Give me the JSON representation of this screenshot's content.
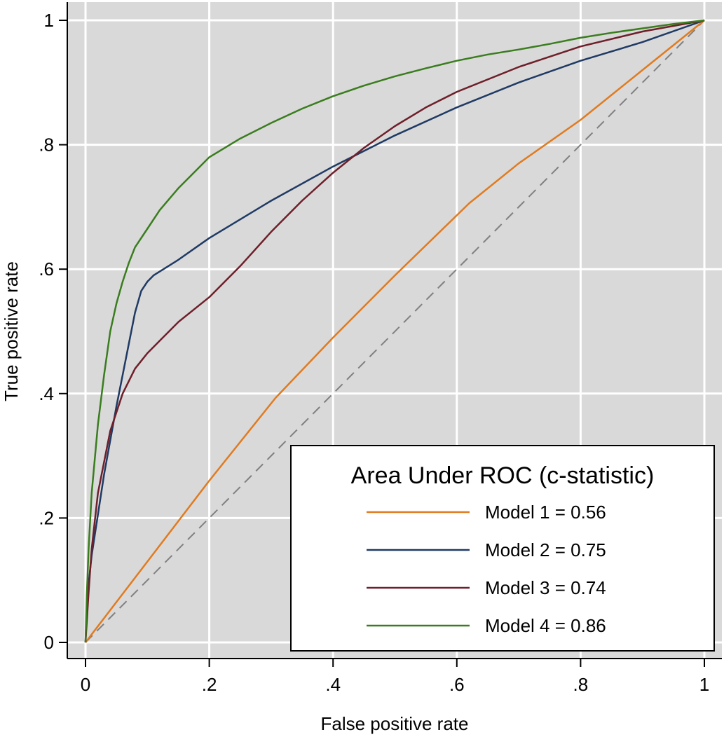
{
  "chart_data": {
    "type": "line",
    "xlabel": "False positive rate",
    "ylabel": "True positive rate",
    "xlim": [
      0,
      1
    ],
    "ylim": [
      0,
      1
    ],
    "grid": true,
    "background_color": "#d9d9d9",
    "grid_color": "#ffffff",
    "x_ticks": [
      {
        "value": 0,
        "label": "0"
      },
      {
        "value": 0.2,
        "label": ".2"
      },
      {
        "value": 0.4,
        "label": ".4"
      },
      {
        "value": 0.6,
        "label": ".6"
      },
      {
        "value": 0.8,
        "label": ".8"
      },
      {
        "value": 1,
        "label": "1"
      }
    ],
    "y_ticks": [
      {
        "value": 0,
        "label": "0"
      },
      {
        "value": 0.2,
        "label": ".2"
      },
      {
        "value": 0.4,
        "label": ".4"
      },
      {
        "value": 0.6,
        "label": ".6"
      },
      {
        "value": 0.8,
        "label": ".8"
      },
      {
        "value": 1,
        "label": "1"
      }
    ],
    "reference_line": {
      "x": [
        0,
        1
      ],
      "y": [
        0,
        1
      ],
      "color": "#808080",
      "dashed": true
    },
    "legend": {
      "title": "Area Under ROC (c-statistic)",
      "position": "bottom-right"
    },
    "series": [
      {
        "name": "Model 1 = 0.56",
        "color": "#e07b1f",
        "x": [
          0,
          0.1,
          0.2,
          0.307,
          0.4,
          0.5,
          0.62,
          0.7,
          0.8,
          0.9,
          1
        ],
        "y": [
          0,
          0.13,
          0.26,
          0.393,
          0.49,
          0.59,
          0.706,
          0.77,
          0.84,
          0.92,
          1
        ]
      },
      {
        "name": "Model 2 = 0.75",
        "color": "#1f3a64",
        "x": [
          0,
          0.003,
          0.01,
          0.03,
          0.05,
          0.07,
          0.08,
          0.09,
          0.1,
          0.11,
          0.15,
          0.2,
          0.3,
          0.4,
          0.5,
          0.6,
          0.7,
          0.8,
          0.9,
          1
        ],
        "y": [
          0,
          0.075,
          0.14,
          0.27,
          0.38,
          0.48,
          0.53,
          0.565,
          0.58,
          0.59,
          0.615,
          0.65,
          0.71,
          0.765,
          0.815,
          0.86,
          0.9,
          0.935,
          0.965,
          1
        ]
      },
      {
        "name": "Model 3 = 0.74",
        "color": "#6e1f2a",
        "x": [
          0,
          0.005,
          0.01,
          0.02,
          0.04,
          0.06,
          0.08,
          0.1,
          0.12,
          0.15,
          0.2,
          0.25,
          0.3,
          0.35,
          0.4,
          0.45,
          0.5,
          0.55,
          0.6,
          0.7,
          0.8,
          0.9,
          1
        ],
        "y": [
          0,
          0.08,
          0.15,
          0.24,
          0.34,
          0.4,
          0.44,
          0.465,
          0.485,
          0.515,
          0.555,
          0.605,
          0.66,
          0.71,
          0.755,
          0.795,
          0.83,
          0.86,
          0.885,
          0.925,
          0.958,
          0.982,
          1
        ]
      },
      {
        "name": "Model 4 = 0.86",
        "color": "#3a7d1e",
        "x": [
          0,
          0.002,
          0.005,
          0.01,
          0.02,
          0.03,
          0.04,
          0.05,
          0.06,
          0.07,
          0.08,
          0.1,
          0.12,
          0.15,
          0.2,
          0.25,
          0.3,
          0.35,
          0.4,
          0.45,
          0.5,
          0.55,
          0.6,
          0.65,
          0.7,
          0.75,
          0.8,
          0.85,
          0.9,
          0.95,
          1
        ],
        "y": [
          0,
          0.075,
          0.15,
          0.24,
          0.35,
          0.43,
          0.5,
          0.545,
          0.58,
          0.61,
          0.635,
          0.665,
          0.695,
          0.73,
          0.78,
          0.81,
          0.835,
          0.858,
          0.878,
          0.895,
          0.91,
          0.923,
          0.935,
          0.945,
          0.953,
          0.962,
          0.972,
          0.98,
          0.987,
          0.994,
          1
        ]
      }
    ]
  }
}
